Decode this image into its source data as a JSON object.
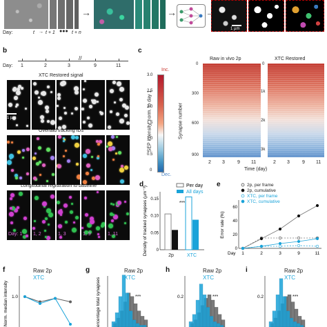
{
  "colors": {
    "accent_blue": "#1aa3d9",
    "raw_gray": "#5f5f5f",
    "heat_red": "#c9342d",
    "heat_blue": "#4f86c4"
  },
  "panel_a": {
    "day_label": "Day:",
    "timepoints": [
      "t",
      "t + 1",
      "t + n"
    ],
    "scale_label": "1 µm"
  },
  "panel_b": {
    "letter": "b",
    "day_label": "Day:",
    "days": [
      "1",
      "2",
      "3",
      "9",
      "11"
    ],
    "row1_title": "XTC Restored signal",
    "row2_title": "Overlaid tracking IDs",
    "row3_title": "Longitudinal registration to baseline",
    "scale_label": "1 µm",
    "registration_labels": [
      "Day: 1",
      "1, 2",
      "1, 3",
      "1, 9",
      "1, 11"
    ]
  },
  "panel_c": {
    "letter": "c",
    "colorbar_label": "SEP intensity, norm. to day 1",
    "colorbar_ticks": [
      "3.0",
      "2.5",
      "2.0",
      "1.5",
      "1.0",
      "0.5",
      "0"
    ],
    "inc_label": "Inc.",
    "dec_label": "Dec.",
    "left_title": "Raw in vivo 2p",
    "right_title": "XTC Restored",
    "left_ylabel": "Synapse number",
    "left_yticks": [
      "0",
      "300",
      "600",
      "900"
    ],
    "right_yticks": [
      "0",
      "1k",
      "2k",
      "3k"
    ],
    "xticks": [
      "2",
      "3",
      "9",
      "11"
    ],
    "xlabel": "Time (day)"
  },
  "chart_data": [
    {
      "panel": "d",
      "type": "bar",
      "ylabel": "Density of tracked synapses (µm⁻³)",
      "yticks": [
        "0",
        "0.05",
        "0.10",
        "0.15"
      ],
      "ylim": [
        0,
        0.17
      ],
      "categories": [
        "2p",
        "XTC"
      ],
      "series": [
        {
          "name": "Per day",
          "values": [
            0.105,
            0.155
          ]
        },
        {
          "name": "All days",
          "values": [
            0.058,
            0.088
          ]
        }
      ],
      "annotation": "***"
    },
    {
      "panel": "e",
      "type": "line",
      "ylabel": "Error rate (%)",
      "xlabel": "Day",
      "x": [
        "1",
        "2",
        "3",
        "9",
        "11"
      ],
      "yticks": [
        "0",
        "20",
        "40",
        "60"
      ],
      "ylim": [
        0,
        70
      ],
      "series": [
        {
          "name": "2p, per frame",
          "values": [
            0,
            15,
            15,
            15,
            15
          ]
        },
        {
          "name": "2p, cumulative",
          "values": [
            0,
            14,
            28,
            47,
            62
          ]
        },
        {
          "name": "XTC, per frame",
          "values": [
            0,
            3,
            3,
            4,
            3
          ]
        },
        {
          "name": "XTC, cumulative",
          "values": [
            0,
            3,
            7,
            10,
            14
          ]
        }
      ]
    },
    {
      "panel": "f",
      "type": "line",
      "ylabel": "Norm. median intensity",
      "yticks": [
        "1.0"
      ],
      "series": [
        {
          "name": "Raw 2p",
          "values": [
            1.0,
            0.97,
            0.99,
            0.97
          ]
        },
        {
          "name": "XTC",
          "values": [
            1.0,
            0.96,
            0.99,
            0.84
          ]
        }
      ]
    },
    {
      "panel": "g",
      "type": "bar",
      "ylabel": "Percentage total synapses",
      "annotation": "***",
      "series": [
        {
          "name": "Raw 2p",
          "values": [
            2,
            5,
            9,
            14,
            19,
            17,
            13,
            9,
            6,
            4
          ]
        },
        {
          "name": "XTC",
          "values": [
            3,
            8,
            17,
            29,
            19,
            9,
            4,
            2,
            1,
            1
          ]
        }
      ]
    },
    {
      "panel": "h",
      "type": "bar",
      "yticks": [
        "0.2"
      ],
      "annotation": "***",
      "series": [
        {
          "name": "Raw 2p",
          "values": [
            2,
            4,
            8,
            12,
            16,
            18,
            15,
            11,
            7,
            4
          ]
        },
        {
          "name": "XTC",
          "values": [
            3,
            7,
            15,
            24,
            18,
            11,
            6,
            3,
            2,
            1
          ]
        }
      ]
    },
    {
      "panel": "i",
      "type": "bar",
      "yticks": [
        "0.2"
      ],
      "annotation": "***",
      "series": [
        {
          "name": "Raw 2p",
          "values": [
            2,
            5,
            9,
            13,
            17,
            18,
            14,
            10,
            6,
            4
          ]
        },
        {
          "name": "XTC",
          "values": [
            3,
            9,
            18,
            27,
            17,
            9,
            5,
            3,
            2,
            1
          ]
        }
      ]
    }
  ],
  "panel_f_legend": {
    "raw": "Raw 2p",
    "xtc": "XTC"
  },
  "panel_g_legend": {
    "raw": "Raw 2p",
    "xtc": "XTC"
  },
  "panel_h_legend": {
    "raw": "Raw 2p",
    "xtc": "XTC"
  },
  "panel_i_legend": {
    "raw": "Raw 2p",
    "xtc": "XTC"
  }
}
